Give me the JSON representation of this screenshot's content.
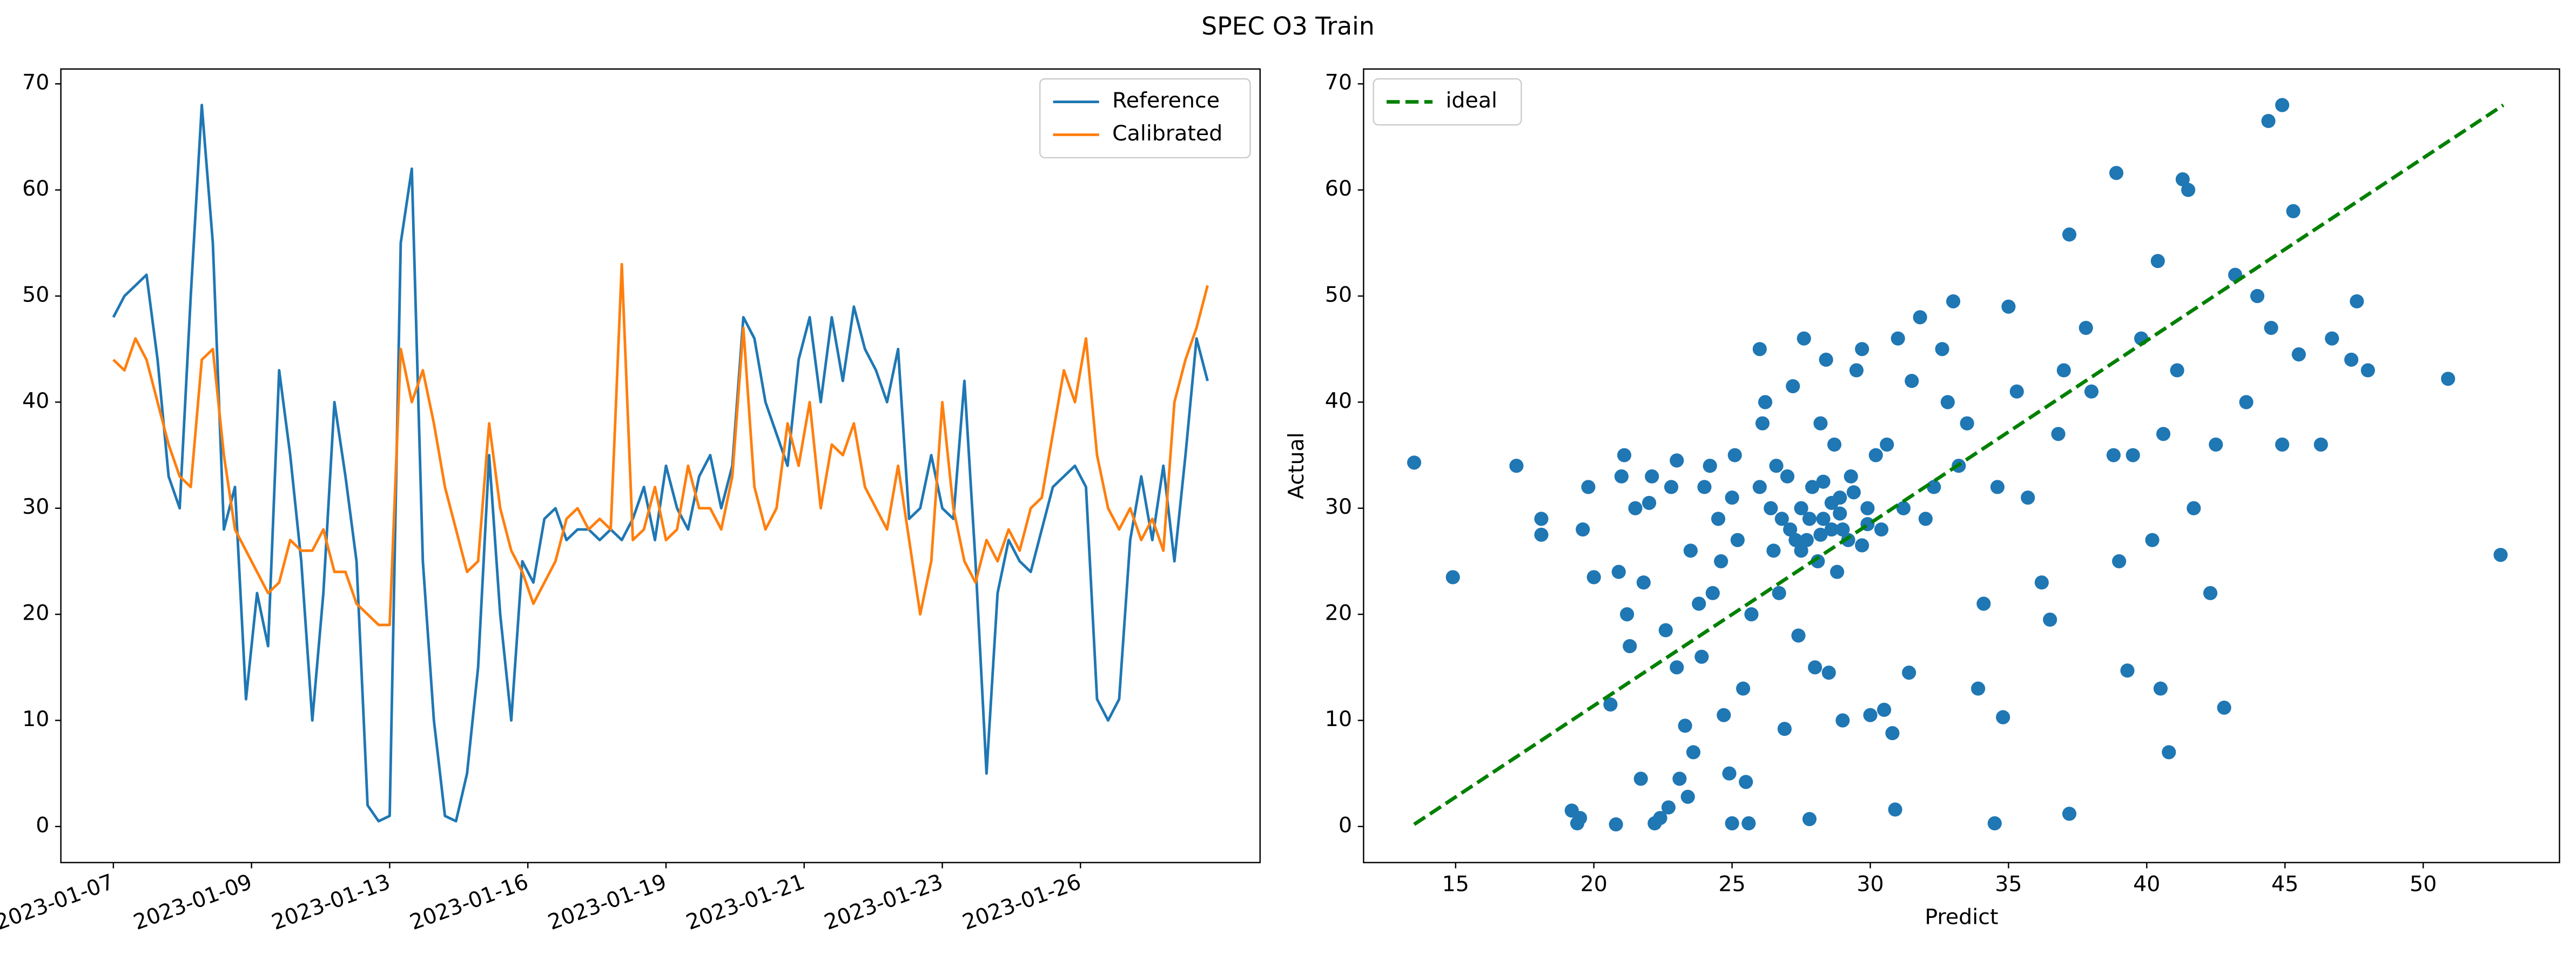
{
  "title": "SPEC O3 Train",
  "chart_data": [
    {
      "type": "line",
      "x": [
        0,
        4,
        8,
        12,
        16,
        20,
        24,
        28,
        32,
        36,
        40,
        44,
        48,
        52,
        56,
        60,
        64,
        68,
        72,
        76,
        80,
        84,
        88,
        92,
        96,
        100,
        104,
        108,
        112,
        116,
        120,
        124,
        128,
        132,
        136,
        140,
        144,
        148,
        152,
        156,
        160,
        164,
        168,
        172,
        176,
        180,
        184,
        188,
        192,
        196,
        200,
        204,
        208,
        212,
        216,
        220,
        224,
        228,
        232,
        236,
        240,
        244,
        248,
        252,
        256,
        260,
        264,
        268,
        272,
        276,
        280,
        284,
        288,
        292,
        296,
        300,
        304,
        308,
        312,
        316,
        320,
        324,
        328,
        332,
        336,
        340,
        344,
        348,
        352,
        356,
        360,
        364,
        368,
        372,
        376,
        380,
        384,
        388,
        392,
        396
      ],
      "series": [
        {
          "name": "Reference",
          "color": "#1f77b4",
          "values": [
            48,
            50,
            51,
            52,
            44,
            33,
            30,
            50,
            68,
            55,
            28,
            32,
            12,
            22,
            17,
            43,
            35,
            25,
            10,
            22,
            40,
            33,
            25,
            2,
            0.5,
            1,
            55,
            62,
            25,
            10,
            1,
            0.5,
            5,
            15,
            35,
            20,
            10,
            25,
            23,
            29,
            30,
            27,
            28,
            28,
            27,
            28,
            27,
            29,
            32,
            27,
            34,
            30,
            28,
            33,
            35,
            30,
            34,
            48,
            46,
            40,
            37,
            34,
            44,
            48,
            40,
            48,
            42,
            49,
            45,
            43,
            40,
            45,
            29,
            30,
            35,
            30,
            29,
            42,
            25,
            5,
            22,
            27,
            25,
            24,
            28,
            32,
            33,
            34,
            32,
            12,
            10,
            12,
            27,
            33,
            27,
            34,
            25,
            35,
            46,
            42
          ]
        },
        {
          "name": "Calibrated",
          "color": "#ff7f0e",
          "values": [
            44,
            43,
            46,
            44,
            40,
            36,
            33,
            32,
            44,
            45,
            35,
            28,
            26,
            24,
            22,
            23,
            27,
            26,
            26,
            28,
            24,
            24,
            21,
            20,
            19,
            19,
            45,
            40,
            43,
            38,
            32,
            28,
            24,
            25,
            38,
            30,
            26,
            24,
            21,
            23,
            25,
            29,
            30,
            28,
            29,
            28,
            53,
            27,
            28,
            32,
            27,
            28,
            34,
            30,
            30,
            28,
            33,
            47,
            32,
            28,
            30,
            38,
            34,
            40,
            30,
            36,
            35,
            38,
            32,
            30,
            28,
            34,
            27,
            20,
            25,
            40,
            30,
            25,
            23,
            27,
            25,
            28,
            26,
            30,
            31,
            37,
            43,
            40,
            46,
            35,
            30,
            28,
            30,
            27,
            29,
            26,
            40,
            44,
            47,
            51
          ]
        }
      ],
      "xlim": [
        -19,
        415
      ],
      "xticks": [
        {
          "value": 0,
          "label": "2023-01-07"
        },
        {
          "value": 50,
          "label": "2023-01-09"
        },
        {
          "value": 100,
          "label": "2023-01-13"
        },
        {
          "value": 150,
          "label": "2023-01-16"
        },
        {
          "value": 200,
          "label": "2023-01-19"
        },
        {
          "value": 250,
          "label": "2023-01-21"
        },
        {
          "value": 300,
          "label": "2023-01-23"
        },
        {
          "value": 350,
          "label": "2023-01-26"
        }
      ],
      "xtick_rotation": 20,
      "ylim": [
        -3.4,
        71.4
      ],
      "yticks": [
        0,
        10,
        20,
        30,
        40,
        50,
        60,
        70
      ],
      "legend": "upper right"
    },
    {
      "type": "scatter",
      "x_label": "Predict",
      "y_label": "Actual",
      "series": [
        {
          "color": "#1f77b4",
          "x": [
            13.5,
            14.9,
            17.2,
            18.1,
            18.1,
            19.2,
            19.4,
            19.5,
            19.6,
            19.8,
            20,
            20.6,
            20.8,
            20.9,
            21,
            21.1,
            21.2,
            21.3,
            21.5,
            21.7,
            21.8,
            22,
            22.1,
            22.2,
            22.4,
            22.6,
            22.7,
            22.8,
            23,
            23,
            23.1,
            23.3,
            23.4,
            23.5,
            23.6,
            23.8,
            23.9,
            24,
            24.2,
            24.3,
            24.5,
            24.6,
            24.7,
            24.9,
            25,
            25,
            25.1,
            25.2,
            25.4,
            25.5,
            25.6,
            25.7,
            26,
            26,
            26.1,
            26.2,
            26.4,
            26.5,
            26.6,
            26.7,
            26.8,
            26.9,
            27,
            27.1,
            27.2,
            27.3,
            27.4,
            27.5,
            27.6,
            27.7,
            27.8,
            27.9,
            28,
            28.1,
            28.2,
            28.3,
            28.4,
            28.5,
            28.6,
            28.7,
            28.8,
            28.9,
            29,
            29.2,
            29.3,
            29.5,
            29.7,
            29.9,
            30,
            30.2,
            30.4,
            30.5,
            30.6,
            30.8,
            30.9,
            31,
            31.2,
            31.4,
            31.5,
            31.8,
            32,
            32.3,
            32.6,
            32.8,
            33,
            33.2,
            33.5,
            33.9,
            34.1,
            34.5,
            34.6,
            34.8,
            35,
            35.3,
            35.7,
            36.2,
            36.5,
            36.8,
            37,
            37.2,
            37.2,
            37.8,
            38,
            38.8,
            38.9,
            39,
            39.3,
            39.5,
            39.8,
            40.2,
            40.4,
            40.5,
            40.6,
            40.8,
            41.1,
            41.3,
            41.5,
            41.7,
            42.3,
            42.5,
            42.8,
            43.2,
            43.6,
            44,
            44.4,
            44.5,
            44.9,
            44.9,
            45.3,
            45.5,
            46.3,
            46.7,
            47.4,
            47.6,
            48,
            50.9,
            52.8,
            27.8,
            28.2,
            28.6,
            29,
            29.4,
            29.7,
            28.9,
            27.5,
            28.3,
            29.9
          ],
          "values": [
            34.3,
            23.5,
            34,
            29,
            27.5,
            1.5,
            0.3,
            0.8,
            28,
            32,
            23.5,
            11.5,
            0.2,
            24,
            33,
            35,
            20,
            17,
            30,
            4.5,
            23,
            30.5,
            33,
            0.3,
            0.8,
            18.5,
            1.8,
            32,
            34.5,
            15,
            4.5,
            9.5,
            2.8,
            26,
            7,
            21,
            16,
            32,
            34,
            22,
            29,
            25,
            10.5,
            5,
            0.3,
            31,
            35,
            27,
            13,
            4.2,
            0.3,
            20,
            32,
            45,
            38,
            40,
            30,
            26,
            34,
            22,
            29,
            9.2,
            33,
            28,
            41.5,
            27,
            18,
            30,
            46,
            27,
            0.7,
            32,
            15,
            25,
            38,
            29,
            44,
            14.5,
            28,
            36,
            24,
            31,
            10,
            27,
            33,
            43,
            45,
            30,
            10.5,
            35,
            28,
            11,
            36,
            8.8,
            1.6,
            46,
            30,
            14.5,
            42,
            48,
            29,
            32,
            45,
            40,
            49.5,
            34,
            38,
            13,
            21,
            0.3,
            32,
            10.3,
            49,
            41,
            31,
            23,
            19.5,
            37,
            43,
            55.8,
            1.2,
            47,
            41,
            35,
            61.6,
            25,
            14.7,
            35,
            46,
            27,
            53.3,
            13,
            37,
            7,
            43,
            61,
            60,
            30,
            22,
            36,
            11.2,
            52,
            40,
            50,
            66.5,
            47,
            68,
            36,
            58,
            44.5,
            36,
            46,
            44,
            49.5,
            43,
            42.2,
            25.6,
            29,
            27.5,
            30.5,
            28,
            31.5,
            26.5,
            29.5,
            26,
            32.5,
            28.5
          ]
        },
        {
          "name": "ideal",
          "type": "line",
          "color": "#008000",
          "style": "dashed",
          "x": [
            13.5,
            52.9
          ],
          "values": [
            0.2,
            68
          ]
        }
      ],
      "xlim": [
        11.67,
        54.93
      ],
      "xticks": [
        15,
        20,
        25,
        30,
        35,
        40,
        45,
        50
      ],
      "ylim": [
        -3.4,
        71.4
      ],
      "yticks": [
        0,
        10,
        20,
        30,
        40,
        50,
        60,
        70
      ],
      "legend": "upper left"
    }
  ]
}
